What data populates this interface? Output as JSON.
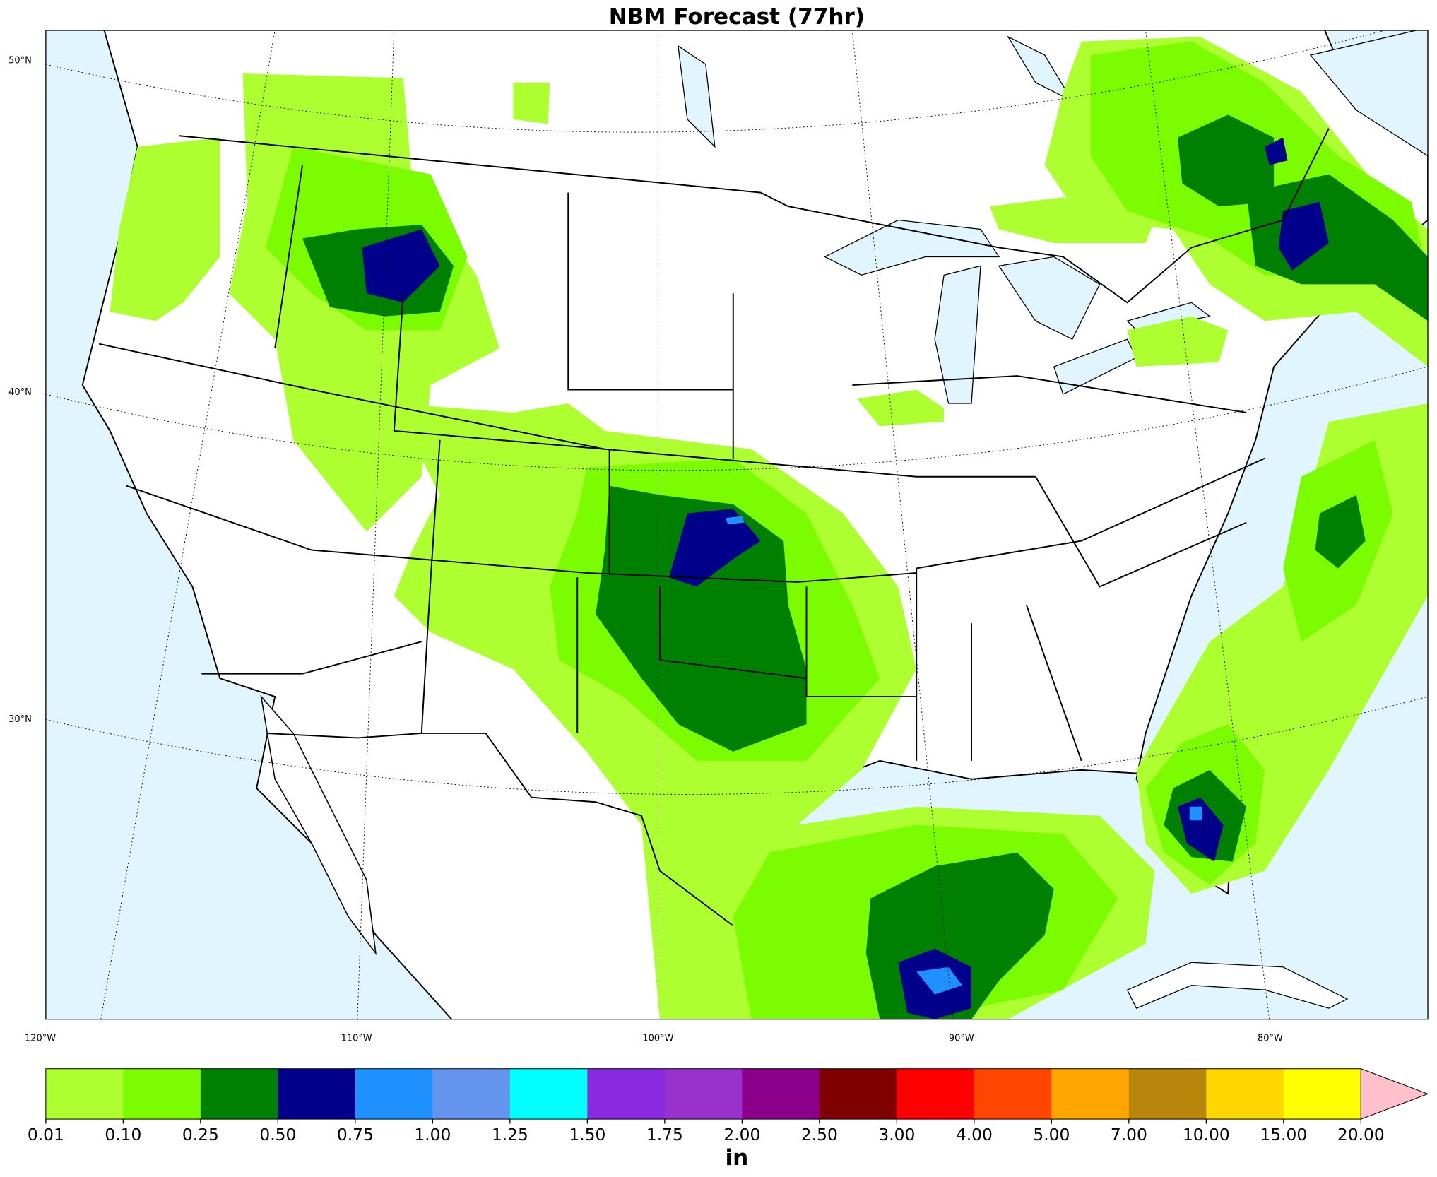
{
  "title": "NBM Forecast (77hr)",
  "latitude_labels": [
    "50°N",
    "40°N",
    "30°N"
  ],
  "longitude_labels": [
    "120°W",
    "110°W",
    "100°W",
    "90°W",
    "80°W"
  ],
  "colorbar": {
    "ticks": [
      {
        "value": 0.01,
        "label": "0.01"
      },
      {
        "value": 0.1,
        "label": "0.10"
      },
      {
        "value": 0.25,
        "label": "0.25"
      },
      {
        "value": 0.5,
        "label": "0.50"
      },
      {
        "value": 0.75,
        "label": "0.75"
      },
      {
        "value": 1,
        "label": "1.00"
      },
      {
        "value": 1.25,
        "label": "1.25"
      },
      {
        "value": 1.5,
        "label": "1.50"
      },
      {
        "value": 1.75,
        "label": "1.75"
      },
      {
        "value": 2,
        "label": "2.00"
      },
      {
        "value": 2.5,
        "label": "2.50"
      },
      {
        "value": 3,
        "label": "3.00"
      },
      {
        "value": 4,
        "label": "4.00"
      },
      {
        "value": 5,
        "label": "5.00"
      },
      {
        "value": 7,
        "label": "7.00"
      },
      {
        "value": 10,
        "label": "10.00"
      },
      {
        "value": 15,
        "label": "15.00"
      },
      {
        "value": 20,
        "label": "20.00"
      }
    ],
    "colors": [
      "#adff2f",
      "#7cfc00",
      "#008000",
      "#00008b",
      "#1e90ff",
      "#6495ed",
      "#00ffff",
      "#8a2be2",
      "#9932cc",
      "#8b008b",
      "#800000",
      "#ff0000",
      "#ff4500",
      "#ffa500",
      "#b8860b",
      "#ffd700",
      "#ffff00"
    ],
    "extend_color": "#ffc0cb",
    "unit": "in"
  }
}
